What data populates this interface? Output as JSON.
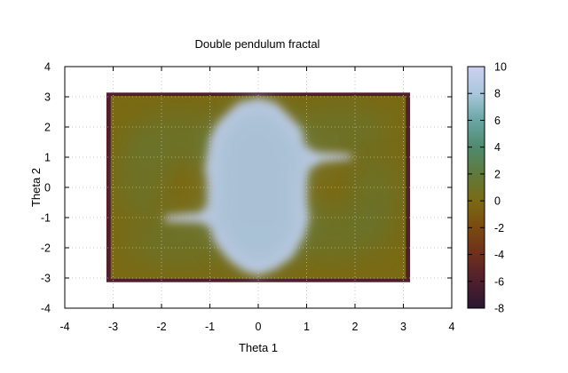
{
  "chart_data": {
    "type": "heatmap",
    "title": "Double pendulum fractal",
    "xlabel": "Theta 1",
    "ylabel": "Theta 2",
    "xlim": [
      -4,
      4
    ],
    "ylim": [
      -4,
      4
    ],
    "x_ticks": [
      "-4",
      "-3",
      "-2",
      "-1",
      "0",
      "1",
      "2",
      "3",
      "4"
    ],
    "y_ticks": [
      "-4",
      "-3",
      "-2",
      "-1",
      "0",
      "1",
      "2",
      "3",
      "4"
    ],
    "data_extent": {
      "x": [
        -3.14159,
        3.14159
      ],
      "y": [
        -3.14159,
        3.14159
      ]
    },
    "colorbar": {
      "range": [
        -8,
        10
      ],
      "ticks": [
        "-8",
        "-6",
        "-4",
        "-2",
        "0",
        "2",
        "4",
        "6",
        "8",
        "10"
      ],
      "colors": [
        {
          "value": -8,
          "color": "#2a1630"
        },
        {
          "value": -6,
          "color": "#4f1f2e"
        },
        {
          "value": -4,
          "color": "#6e2f1c"
        },
        {
          "value": -2,
          "color": "#7a4a10"
        },
        {
          "value": 0,
          "color": "#7a6a14"
        },
        {
          "value": 2,
          "color": "#5f7a3c"
        },
        {
          "value": 4,
          "color": "#4f8a6e"
        },
        {
          "value": 6,
          "color": "#6aa6a4"
        },
        {
          "value": 8,
          "color": "#a9c7dc"
        },
        {
          "value": 10,
          "color": "#cdd1f1"
        }
      ]
    },
    "grid": true,
    "regions": {
      "plateau_value": 10,
      "background_values": [
        0,
        2
      ],
      "edge_value": -6
    }
  }
}
